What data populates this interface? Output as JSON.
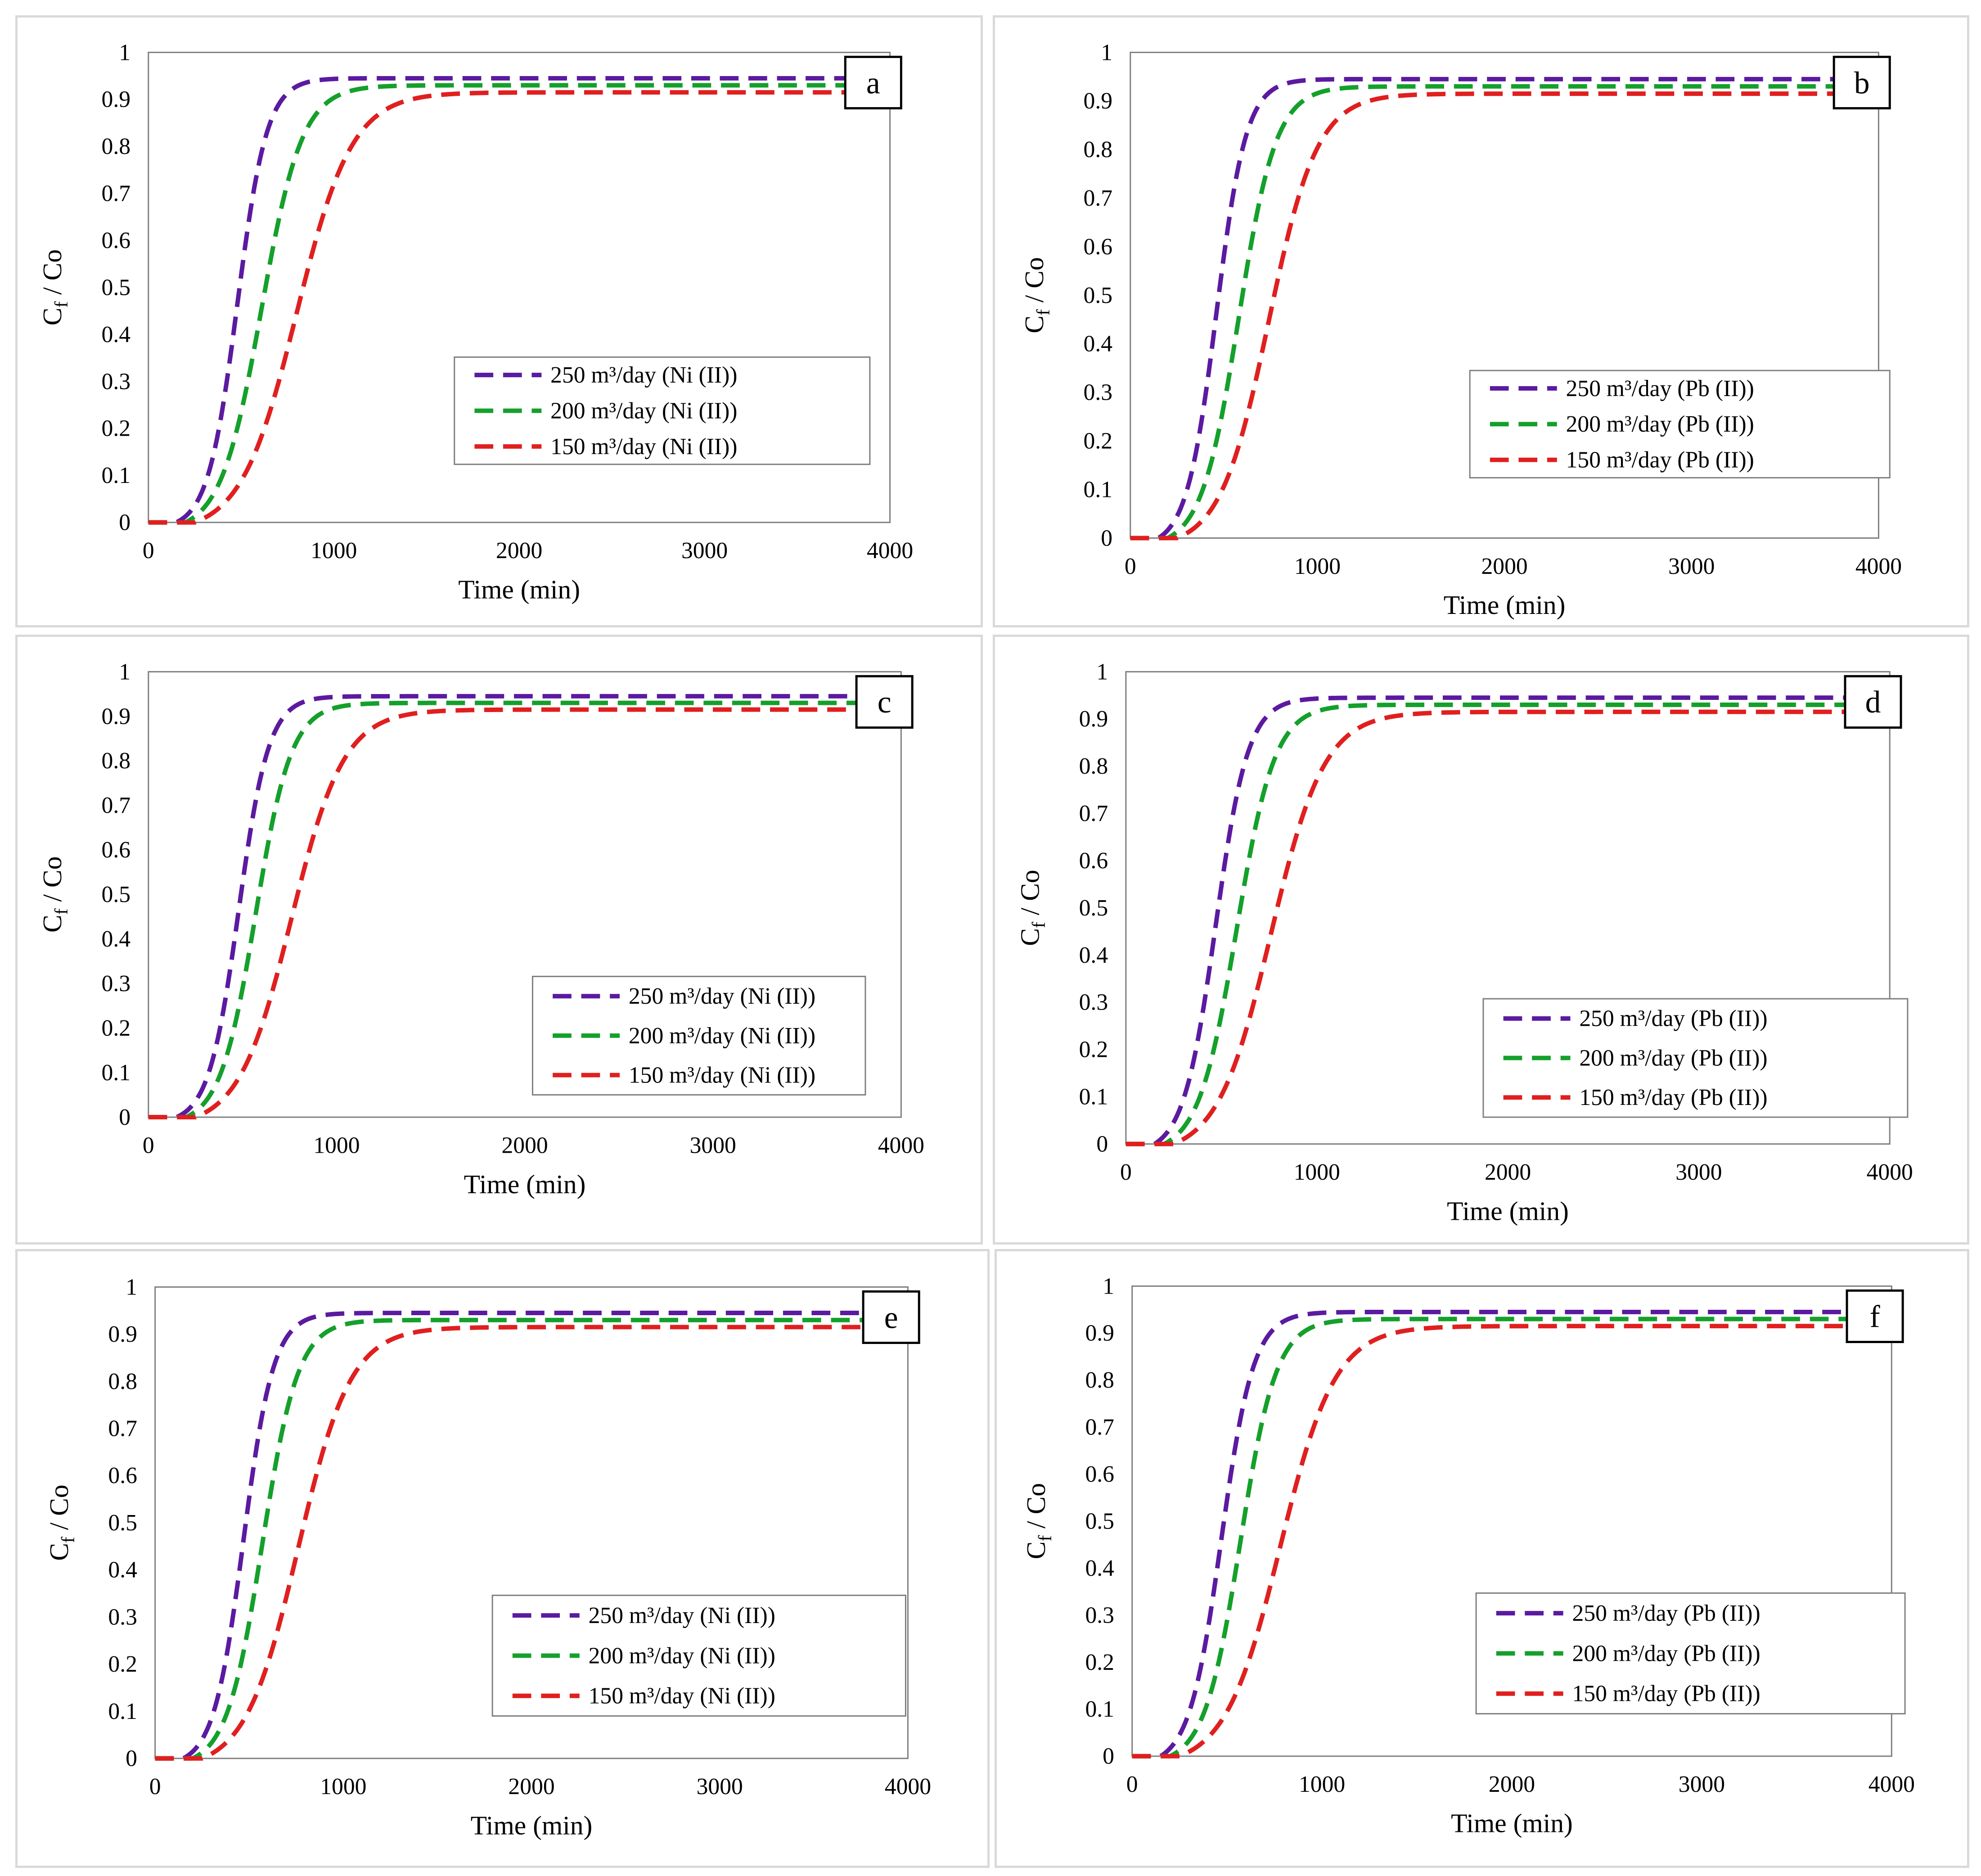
{
  "colors": {
    "s250": "#5b1aa0",
    "s200": "#14a02b",
    "s150": "#e01f1f",
    "frame": "#d9d9d9"
  },
  "chart_data": [
    {
      "id": "a",
      "type": "line",
      "panel_label": "a",
      "title": "",
      "xlabel": "Time (min)",
      "ylabel_main": "C",
      "ylabel_sub": "f",
      "ylabel_rest": " / Co",
      "xlim": [
        0,
        4000
      ],
      "ylim": [
        0,
        1
      ],
      "xticks": [
        "0",
        "1000",
        "2000",
        "3000",
        "4000"
      ],
      "yticks": [
        "0",
        "0.1",
        "0.2",
        "0.3",
        "0.4",
        "0.5",
        "0.6",
        "0.7",
        "0.8",
        "0.9",
        "1"
      ],
      "legend_position": "center-right",
      "line_style": "dashed",
      "series": [
        {
          "name": "250 m³/day (Ni (II))",
          "color": "#5b1aa0",
          "plateau": 0.945,
          "t50": 480,
          "width": 80,
          "start": 150,
          "x": [
            0,
            150,
            200,
            300,
            400,
            500,
            600,
            700,
            800,
            900,
            1000,
            1200,
            1500,
            2000,
            3000,
            4000
          ],
          "y": [
            0,
            0,
            0.01,
            0.09,
            0.33,
            0.52,
            0.73,
            0.85,
            0.91,
            0.935,
            0.94,
            0.945,
            0.945,
            0.945,
            0.945,
            0.945
          ]
        },
        {
          "name": "200 m³/day (Ni (II))",
          "color": "#14a02b",
          "plateau": 0.93,
          "t50": 610,
          "width": 110,
          "start": 200,
          "x": [
            0,
            200,
            300,
            400,
            500,
            600,
            700,
            800,
            900,
            1000,
            1200,
            1500,
            2000,
            3000,
            4000
          ],
          "y": [
            0,
            0,
            0.05,
            0.17,
            0.34,
            0.5,
            0.65,
            0.77,
            0.85,
            0.89,
            0.92,
            0.93,
            0.93,
            0.93,
            0.93
          ]
        },
        {
          "name": "150 m³/day (Ni (II))",
          "color": "#e01f1f",
          "plateau": 0.915,
          "t50": 800,
          "width": 150,
          "start": 250,
          "x": [
            0,
            250,
            400,
            500,
            600,
            700,
            800,
            900,
            1000,
            1200,
            1500,
            1800,
            2000,
            3000,
            4000
          ],
          "y": [
            0,
            0,
            0.03,
            0.1,
            0.25,
            0.38,
            0.5,
            0.61,
            0.71,
            0.83,
            0.9,
            0.91,
            0.915,
            0.915,
            0.915
          ]
        }
      ]
    },
    {
      "id": "b",
      "type": "line",
      "panel_label": "b",
      "title": "",
      "xlabel": "Time (min)",
      "ylabel_main": "C",
      "ylabel_sub": "f",
      "ylabel_rest": " / Co",
      "xlim": [
        0,
        4000
      ],
      "ylim": [
        0,
        1
      ],
      "xticks": [
        "0",
        "1000",
        "2000",
        "3000",
        "4000"
      ],
      "yticks": [
        "0",
        "0.1",
        "0.2",
        "0.3",
        "0.4",
        "0.5",
        "0.6",
        "0.7",
        "0.8",
        "0.9",
        "1"
      ],
      "legend_position": "center-right",
      "line_style": "dashed",
      "series": [
        {
          "name": "250 m³/day (Pb (II))",
          "color": "#5b1aa0",
          "plateau": 0.945,
          "t50": 460,
          "width": 80,
          "start": 150,
          "x": [
            0,
            150,
            200,
            300,
            400,
            500,
            600,
            700,
            800,
            900,
            1000,
            1200,
            1500,
            2000,
            3000,
            4000
          ],
          "y": [
            0,
            0,
            0.02,
            0.12,
            0.36,
            0.58,
            0.77,
            0.87,
            0.92,
            0.937,
            0.943,
            0.945,
            0.945,
            0.945,
            0.945,
            0.945
          ]
        },
        {
          "name": "200 m³/day (Pb (II))",
          "color": "#14a02b",
          "plateau": 0.93,
          "t50": 580,
          "width": 100,
          "start": 200,
          "x": [
            0,
            200,
            300,
            400,
            500,
            600,
            700,
            800,
            900,
            1000,
            1200,
            1500,
            2000,
            3000,
            4000
          ],
          "y": [
            0,
            0,
            0.06,
            0.2,
            0.38,
            0.55,
            0.7,
            0.8,
            0.87,
            0.9,
            0.92,
            0.93,
            0.93,
            0.93,
            0.93
          ]
        },
        {
          "name": "150 m³/day (Pb (II))",
          "color": "#e01f1f",
          "plateau": 0.915,
          "t50": 740,
          "width": 130,
          "start": 250,
          "x": [
            0,
            250,
            400,
            500,
            600,
            700,
            800,
            900,
            1000,
            1200,
            1500,
            1800,
            2000,
            3000,
            4000
          ],
          "y": [
            0,
            0,
            0.05,
            0.14,
            0.3,
            0.44,
            0.56,
            0.67,
            0.75,
            0.85,
            0.905,
            0.912,
            0.915,
            0.915,
            0.915
          ]
        }
      ]
    },
    {
      "id": "c",
      "type": "line",
      "panel_label": "c",
      "title": "",
      "xlabel": "Time (min)",
      "ylabel_main": "C",
      "ylabel_sub": "f",
      "ylabel_rest": " / Co",
      "xlim": [
        0,
        4000
      ],
      "ylim": [
        0,
        1
      ],
      "xticks": [
        "0",
        "1000",
        "2000",
        "3000",
        "4000"
      ],
      "yticks": [
        "0",
        "0.1",
        "0.2",
        "0.3",
        "0.4",
        "0.5",
        "0.6",
        "0.7",
        "0.8",
        "0.9",
        "1"
      ],
      "legend_position": "bottom-right",
      "line_style": "dashed",
      "series": [
        {
          "name": "250 m³/day (Ni (II))",
          "color": "#5b1aa0",
          "plateau": 0.945,
          "t50": 480,
          "width": 80,
          "start": 150,
          "x": [
            0,
            150,
            200,
            300,
            400,
            500,
            600,
            700,
            800,
            900,
            1000,
            1200,
            1500,
            2000,
            3000,
            4000
          ],
          "y": [
            0,
            0,
            0.01,
            0.09,
            0.33,
            0.52,
            0.73,
            0.85,
            0.91,
            0.935,
            0.94,
            0.945,
            0.945,
            0.945,
            0.945,
            0.945
          ]
        },
        {
          "name": "200 m³/day (Ni (II))",
          "color": "#14a02b",
          "plateau": 0.93,
          "t50": 570,
          "width": 95,
          "start": 200,
          "x": [
            0,
            200,
            300,
            400,
            500,
            600,
            700,
            800,
            900,
            1000,
            1200,
            1500,
            2000,
            3000,
            4000
          ],
          "y": [
            0,
            0,
            0.06,
            0.2,
            0.4,
            0.57,
            0.72,
            0.82,
            0.88,
            0.91,
            0.925,
            0.93,
            0.93,
            0.93,
            0.93
          ]
        },
        {
          "name": "150 m³/day  (Ni (II))",
          "color": "#e01f1f",
          "plateau": 0.915,
          "t50": 760,
          "width": 140,
          "start": 250,
          "x": [
            0,
            250,
            400,
            500,
            600,
            700,
            800,
            900,
            1000,
            1200,
            1500,
            1800,
            2000,
            3000,
            4000
          ],
          "y": [
            0,
            0,
            0.04,
            0.12,
            0.27,
            0.41,
            0.54,
            0.65,
            0.74,
            0.85,
            0.905,
            0.912,
            0.915,
            0.915,
            0.915
          ]
        }
      ]
    },
    {
      "id": "d",
      "type": "line",
      "panel_label": "d",
      "title": "",
      "xlabel": "Time (min)",
      "ylabel_main": "C",
      "ylabel_sub": "f",
      "ylabel_rest": " / Co",
      "xlim": [
        0,
        4000
      ],
      "ylim": [
        0,
        1
      ],
      "xticks": [
        "0",
        "1000",
        "2000",
        "3000",
        "4000"
      ],
      "yticks": [
        "0",
        "0.1",
        "0.2",
        "0.3",
        "0.4",
        "0.5",
        "0.6",
        "0.7",
        "0.8",
        "0.9",
        "1"
      ],
      "legend_position": "bottom-right",
      "line_style": "dashed",
      "series": [
        {
          "name": "250 m³/day (Pb (II))",
          "color": "#5b1aa0",
          "plateau": 0.945,
          "t50": 470,
          "width": 85,
          "start": 150,
          "x": [
            0,
            150,
            200,
            300,
            400,
            500,
            600,
            700,
            800,
            900,
            1000,
            1200,
            1500,
            2000,
            3000,
            4000
          ],
          "y": [
            0,
            0,
            0.02,
            0.11,
            0.34,
            0.55,
            0.75,
            0.86,
            0.915,
            0.935,
            0.942,
            0.945,
            0.945,
            0.945,
            0.945,
            0.945
          ]
        },
        {
          "name": "200 m³/day (Pb (II))",
          "color": "#14a02b",
          "plateau": 0.93,
          "t50": 580,
          "width": 100,
          "start": 200,
          "x": [
            0,
            200,
            300,
            400,
            500,
            600,
            700,
            800,
            900,
            1000,
            1200,
            1500,
            2000,
            3000,
            4000
          ],
          "y": [
            0,
            0,
            0.06,
            0.19,
            0.38,
            0.55,
            0.7,
            0.8,
            0.87,
            0.9,
            0.92,
            0.93,
            0.93,
            0.93,
            0.93
          ]
        },
        {
          "name": "150 m³/day (Pb (II))",
          "color": "#e01f1f",
          "plateau": 0.915,
          "t50": 760,
          "width": 140,
          "start": 250,
          "x": [
            0,
            250,
            400,
            500,
            600,
            700,
            800,
            900,
            1000,
            1200,
            1500,
            1800,
            2000,
            3000,
            4000
          ],
          "y": [
            0,
            0,
            0.04,
            0.12,
            0.27,
            0.41,
            0.54,
            0.65,
            0.74,
            0.85,
            0.905,
            0.912,
            0.915,
            0.915,
            0.915
          ]
        }
      ]
    },
    {
      "id": "e",
      "type": "line",
      "panel_label": "e",
      "title": "",
      "xlabel": "Time (min)",
      "ylabel_main": "C",
      "ylabel_sub": "f",
      "ylabel_rest": " / Co",
      "xlim": [
        0,
        4000
      ],
      "ylim": [
        0,
        1
      ],
      "xticks": [
        "0",
        "1000",
        "2000",
        "3000",
        "4000"
      ],
      "yticks": [
        "0",
        "0.1",
        "0.2",
        "0.3",
        "0.4",
        "0.5",
        "0.6",
        "0.7",
        "0.8",
        "0.9",
        "1"
      ],
      "legend_position": "bottom-right",
      "line_style": "dashed",
      "series": [
        {
          "name": "250 m³/day (Ni (II))",
          "color": "#5b1aa0",
          "plateau": 0.945,
          "t50": 470,
          "width": 80,
          "start": 150,
          "x": [
            0,
            150,
            200,
            300,
            400,
            500,
            600,
            700,
            800,
            900,
            1000,
            1200,
            1500,
            2000,
            3000,
            4000
          ],
          "y": [
            0,
            0,
            0.01,
            0.1,
            0.34,
            0.55,
            0.75,
            0.86,
            0.915,
            0.935,
            0.942,
            0.945,
            0.945,
            0.945,
            0.945,
            0.945
          ]
        },
        {
          "name": "200 m³/day (Ni (II))",
          "color": "#14a02b",
          "plateau": 0.93,
          "t50": 570,
          "width": 95,
          "start": 200,
          "x": [
            0,
            200,
            300,
            400,
            500,
            600,
            700,
            800,
            900,
            1000,
            1200,
            1500,
            2000,
            3000,
            4000
          ],
          "y": [
            0,
            0,
            0.06,
            0.2,
            0.4,
            0.57,
            0.72,
            0.82,
            0.88,
            0.91,
            0.925,
            0.93,
            0.93,
            0.93,
            0.93
          ]
        },
        {
          "name": "150 m³/day (Ni (II))",
          "color": "#e01f1f",
          "plateau": 0.915,
          "t50": 760,
          "width": 140,
          "start": 250,
          "x": [
            0,
            250,
            400,
            500,
            600,
            700,
            800,
            900,
            1000,
            1200,
            1500,
            1800,
            2000,
            3000,
            4000
          ],
          "y": [
            0,
            0,
            0.04,
            0.12,
            0.27,
            0.41,
            0.54,
            0.65,
            0.74,
            0.85,
            0.905,
            0.912,
            0.915,
            0.915,
            0.915
          ]
        }
      ]
    },
    {
      "id": "f",
      "type": "line",
      "panel_label": "f",
      "title": "",
      "xlabel": "Time (min)",
      "ylabel_main": "C",
      "ylabel_sub": "f",
      "ylabel_rest": " / Co",
      "xlim": [
        0,
        4000
      ],
      "ylim": [
        0,
        1
      ],
      "xticks": [
        "0",
        "1000",
        "2000",
        "3000",
        "4000"
      ],
      "yticks": [
        "0",
        "0.1",
        "0.2",
        "0.3",
        "0.4",
        "0.5",
        "0.6",
        "0.7",
        "0.8",
        "0.9",
        "1"
      ],
      "legend_position": "bottom-right",
      "line_style": "dashed",
      "series": [
        {
          "name": "250 m³/day (Pb (II))",
          "color": "#5b1aa0",
          "plateau": 0.945,
          "t50": 470,
          "width": 85,
          "start": 150,
          "x": [
            0,
            150,
            200,
            300,
            400,
            500,
            600,
            700,
            800,
            900,
            1000,
            1200,
            1500,
            2000,
            3000,
            4000
          ],
          "y": [
            0,
            0,
            0.02,
            0.11,
            0.34,
            0.55,
            0.75,
            0.86,
            0.915,
            0.935,
            0.942,
            0.945,
            0.945,
            0.945,
            0.945,
            0.945
          ]
        },
        {
          "name": "200 m³/day (Pb (II))",
          "color": "#14a02b",
          "plateau": 0.93,
          "t50": 570,
          "width": 95,
          "start": 200,
          "x": [
            0,
            200,
            300,
            400,
            500,
            600,
            700,
            800,
            900,
            1000,
            1200,
            1500,
            2000,
            3000,
            4000
          ],
          "y": [
            0,
            0,
            0.06,
            0.2,
            0.4,
            0.57,
            0.72,
            0.82,
            0.88,
            0.91,
            0.925,
            0.93,
            0.93,
            0.93,
            0.93
          ]
        },
        {
          "name": "150 m³/day (Pb (II))",
          "color": "#e01f1f",
          "plateau": 0.915,
          "t50": 780,
          "width": 145,
          "start": 250,
          "x": [
            0,
            250,
            400,
            500,
            600,
            700,
            800,
            900,
            1000,
            1200,
            1500,
            1800,
            2000,
            3000,
            4000
          ],
          "y": [
            0,
            0,
            0.04,
            0.11,
            0.25,
            0.39,
            0.52,
            0.63,
            0.72,
            0.84,
            0.9,
            0.91,
            0.915,
            0.915,
            0.915
          ]
        }
      ]
    }
  ]
}
